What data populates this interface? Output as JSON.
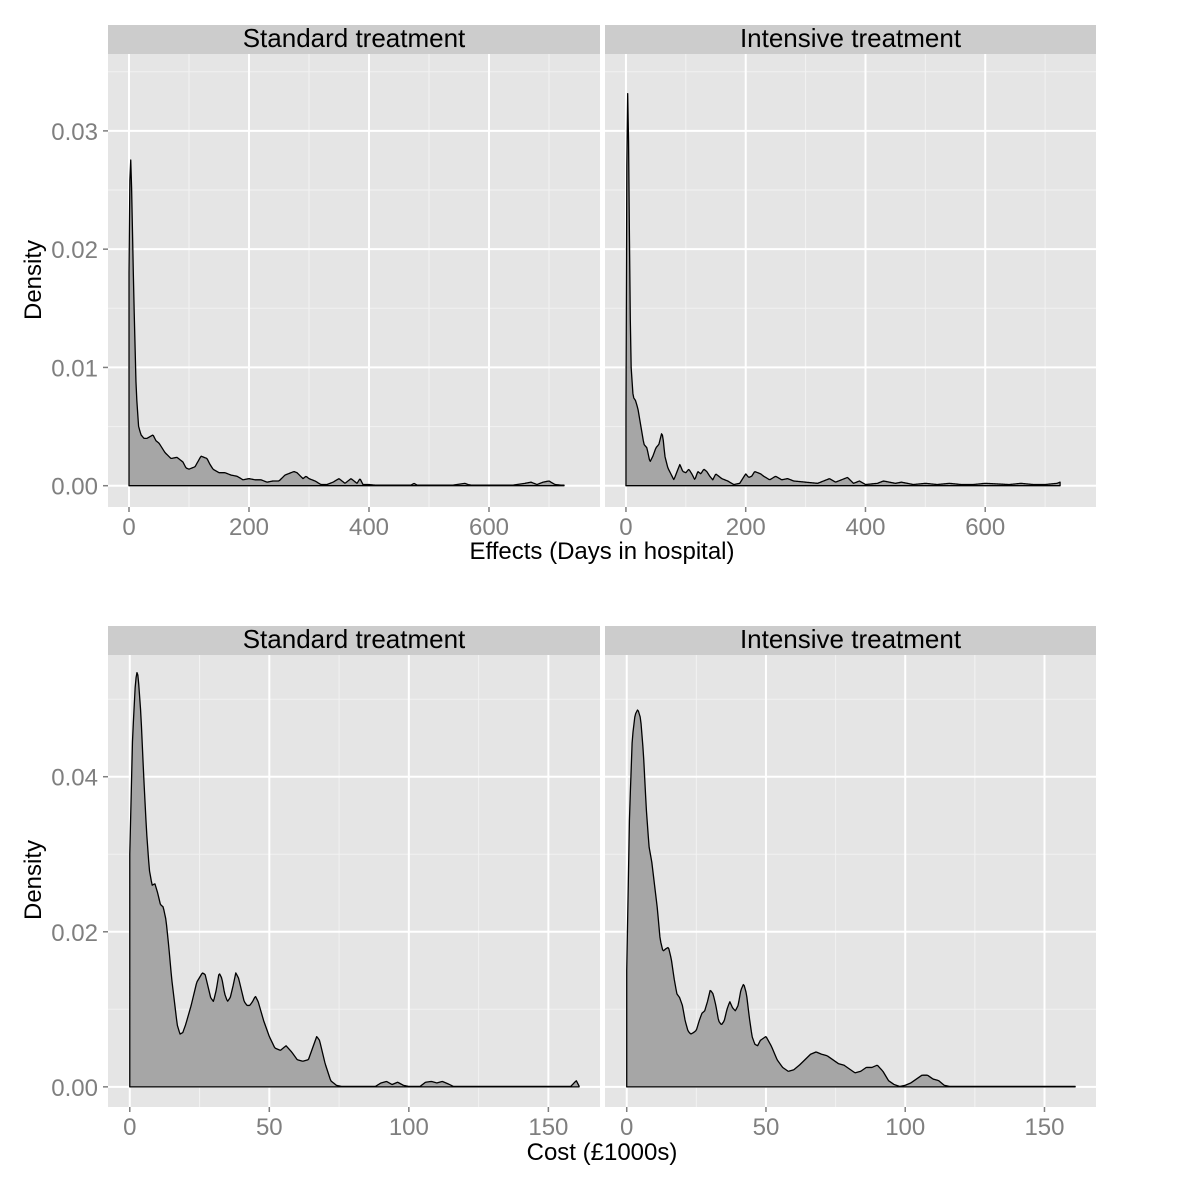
{
  "chart_data": [
    {
      "type": "area",
      "xlabel": "Effects (Days in hospital)",
      "ylabel": "Density",
      "xlim": [
        -35,
        785
      ],
      "ylim": [
        -0.0018,
        0.0365
      ],
      "xticks": [
        {
          "v": 0,
          "label": "0"
        },
        {
          "v": 200,
          "label": "200"
        },
        {
          "v": 400,
          "label": "400"
        },
        {
          "v": 600,
          "label": "600"
        }
      ],
      "yticks": [
        {
          "v": 0,
          "label": "0.00"
        },
        {
          "v": 0.01,
          "label": "0.01"
        },
        {
          "v": 0.02,
          "label": "0.02"
        },
        {
          "v": 0.03,
          "label": "0.03"
        }
      ],
      "panels": [
        {
          "strip": "Standard treatment",
          "x": [
            0,
            2,
            4,
            8,
            12,
            16,
            20,
            25,
            30,
            40,
            45,
            50,
            60,
            70,
            80,
            90,
            95,
            100,
            110,
            120,
            130,
            135,
            140,
            150,
            160,
            170,
            180,
            190,
            200,
            210,
            220,
            230,
            240,
            250,
            260,
            270,
            275,
            280,
            290,
            295,
            300,
            310,
            320,
            330,
            340,
            350,
            360,
            370,
            380,
            385,
            390,
            400,
            410,
            430,
            470,
            475,
            480,
            500,
            540,
            560,
            565,
            570,
            600,
            640,
            660,
            670,
            680,
            690,
            700,
            710,
            720,
            725
          ],
          "values": [
            0.018,
            0.0288,
            0.026,
            0.016,
            0.008,
            0.005,
            0.0043,
            0.004,
            0.004,
            0.0043,
            0.0038,
            0.0036,
            0.0028,
            0.0023,
            0.0024,
            0.002,
            0.0015,
            0.0014,
            0.0016,
            0.0025,
            0.0023,
            0.0018,
            0.0014,
            0.0011,
            0.0011,
            0.0009,
            0.0008,
            0.0005,
            0.0006,
            0.0005,
            0.0005,
            0.0003,
            0.0004,
            0.0004,
            0.0009,
            0.0011,
            0.0012,
            0.0011,
            0.0006,
            0.0008,
            0.0006,
            0.0004,
            0.0001,
            0.0001,
            0.0003,
            0.0006,
            0.0002,
            0.0006,
            0.0002,
            0.0006,
            0.0001,
            0.0001,
            5e-05,
            5e-05,
            5e-05,
            0.0002,
            5e-05,
            5e-05,
            5e-05,
            0.0002,
            0.0001,
            5e-05,
            5e-05,
            5e-05,
            0.0002,
            0.0003,
            0.0001,
            0.0003,
            0.0004,
            0.0001,
            5e-05,
            5e-05
          ]
        },
        {
          "strip": "Intensive treatment",
          "x": [
            0,
            2,
            4,
            6,
            8,
            12,
            16,
            20,
            25,
            30,
            35,
            40,
            45,
            50,
            55,
            60,
            62,
            65,
            70,
            75,
            80,
            90,
            95,
            100,
            105,
            110,
            115,
            120,
            125,
            130,
            135,
            140,
            145,
            150,
            160,
            170,
            180,
            190,
            200,
            205,
            210,
            215,
            220,
            225,
            230,
            240,
            250,
            260,
            270,
            280,
            300,
            320,
            340,
            350,
            360,
            370,
            380,
            390,
            400,
            420,
            430,
            440,
            450,
            460,
            480,
            500,
            520,
            540,
            560,
            580,
            600,
            640,
            660,
            680,
            700,
            720,
            725
          ],
          "values": [
            0.0062,
            0.0349,
            0.031,
            0.02,
            0.0105,
            0.0075,
            0.0072,
            0.0065,
            0.005,
            0.0035,
            0.0032,
            0.002,
            0.0025,
            0.0032,
            0.0035,
            0.0045,
            0.004,
            0.0025,
            0.0015,
            0.001,
            0.0005,
            0.0018,
            0.0012,
            0.0011,
            0.0014,
            0.001,
            0.0005,
            0.0012,
            0.001,
            0.0014,
            0.0012,
            0.0008,
            0.0005,
            0.001,
            0.0006,
            0.0004,
            0.0001,
            0.0002,
            0.001,
            0.0007,
            0.0008,
            0.0012,
            0.0011,
            0.001,
            0.0008,
            0.0005,
            0.0008,
            0.0005,
            0.0006,
            0.0004,
            0.0003,
            0.0002,
            0.0006,
            0.0003,
            0.0005,
            0.0007,
            0.0002,
            0.0004,
            0.0001,
            0.0002,
            0.0004,
            0.0003,
            0.0002,
            0.0003,
            0.0001,
            0.0002,
            0.0001,
            0.0002,
            0.0001,
            0.0001,
            0.0002,
            0.0001,
            0.0002,
            0.0001,
            0.0001,
            0.0002,
            0.0003
          ]
        }
      ]
    },
    {
      "type": "area",
      "xlabel": "Cost (£1000s)",
      "ylabel": "Density",
      "xlim": [
        -7.8,
        168.5
      ],
      "ylim": [
        -0.0026,
        0.0557
      ],
      "xticks": [
        {
          "v": 0,
          "label": "0"
        },
        {
          "v": 50,
          "label": "50"
        },
        {
          "v": 100,
          "label": "100"
        },
        {
          "v": 150,
          "label": "150"
        }
      ],
      "yticks": [
        {
          "v": 0,
          "label": "0.00"
        },
        {
          "v": 0.02,
          "label": "0.02"
        },
        {
          "v": 0.04,
          "label": "0.04"
        }
      ],
      "panels": [
        {
          "strip": "Standard treatment",
          "x": [
            0,
            1,
            2,
            2.5,
            3,
            4,
            5,
            6,
            7,
            8,
            9,
            10,
            11,
            12,
            13,
            14,
            15,
            16,
            17,
            18,
            19,
            20,
            22,
            24,
            26,
            27,
            28,
            29,
            30,
            31,
            32,
            33,
            34,
            35,
            36,
            37,
            38,
            39,
            40,
            41,
            42,
            43,
            44,
            45,
            46,
            48,
            50,
            52,
            54,
            56,
            58,
            60,
            62,
            64,
            66,
            67,
            68,
            70,
            72,
            74,
            76,
            80,
            85,
            88,
            90,
            92,
            94,
            96,
            98,
            100,
            104,
            106,
            108,
            110,
            112,
            114,
            116,
            120,
            130,
            140,
            150,
            158,
            160,
            161
          ],
          "values": [
            0.03,
            0.045,
            0.052,
            0.0535,
            0.053,
            0.048,
            0.04,
            0.033,
            0.028,
            0.026,
            0.0262,
            0.025,
            0.0235,
            0.0232,
            0.0215,
            0.018,
            0.014,
            0.011,
            0.008,
            0.0068,
            0.007,
            0.008,
            0.0105,
            0.0135,
            0.0147,
            0.0145,
            0.013,
            0.0115,
            0.011,
            0.0125,
            0.0147,
            0.014,
            0.012,
            0.011,
            0.0115,
            0.013,
            0.0147,
            0.014,
            0.0125,
            0.011,
            0.0105,
            0.0105,
            0.011,
            0.0117,
            0.011,
            0.0085,
            0.0065,
            0.005,
            0.0047,
            0.0053,
            0.0045,
            0.0035,
            0.0033,
            0.0035,
            0.0055,
            0.0065,
            0.006,
            0.003,
            0.0008,
            0.0002,
            5e-05,
            5e-05,
            5e-05,
            5e-05,
            0.0005,
            0.0007,
            0.0003,
            0.0006,
            0.0002,
            5e-05,
            5e-05,
            0.0006,
            0.0007,
            0.0005,
            0.0007,
            0.0004,
            5e-05,
            5e-05,
            5e-05,
            5e-05,
            5e-05,
            5e-05,
            0.0008,
            0.0001
          ]
        },
        {
          "strip": "Intensive treatment",
          "x": [
            0,
            1,
            2,
            3,
            4,
            5,
            6,
            7,
            8,
            9,
            10,
            11,
            12,
            13,
            14,
            15,
            16,
            17,
            18,
            19,
            20,
            21,
            22,
            23,
            24,
            25,
            26,
            27,
            28,
            29,
            30,
            31,
            32,
            33,
            34,
            35,
            36,
            37,
            38,
            39,
            40,
            41,
            42,
            43,
            44,
            45,
            46,
            47,
            48,
            50,
            52,
            54,
            56,
            58,
            60,
            62,
            64,
            66,
            68,
            70,
            72,
            74,
            76,
            78,
            80,
            82,
            84,
            86,
            88,
            90,
            92,
            94,
            96,
            98,
            100,
            102,
            104,
            106,
            108,
            110,
            112,
            114,
            116,
            120,
            130,
            140,
            150,
            161
          ],
          "values": [
            0.015,
            0.035,
            0.045,
            0.048,
            0.0487,
            0.0475,
            0.043,
            0.036,
            0.031,
            0.029,
            0.026,
            0.023,
            0.019,
            0.0175,
            0.0178,
            0.018,
            0.0165,
            0.014,
            0.012,
            0.0115,
            0.0105,
            0.0085,
            0.0072,
            0.0068,
            0.007,
            0.0073,
            0.0085,
            0.0095,
            0.0098,
            0.011,
            0.0125,
            0.012,
            0.0105,
            0.0085,
            0.008,
            0.0085,
            0.01,
            0.011,
            0.0102,
            0.0098,
            0.0105,
            0.0125,
            0.0133,
            0.012,
            0.009,
            0.0065,
            0.0055,
            0.0053,
            0.006,
            0.0065,
            0.0052,
            0.0035,
            0.0025,
            0.002,
            0.0022,
            0.0028,
            0.0035,
            0.0042,
            0.0045,
            0.0042,
            0.004,
            0.0035,
            0.003,
            0.0028,
            0.0023,
            0.0018,
            0.002,
            0.0025,
            0.0025,
            0.0028,
            0.002,
            0.0008,
            0.0003,
            5e-05,
            0.0002,
            0.0005,
            0.001,
            0.0015,
            0.0015,
            0.001,
            0.0008,
            0.0002,
            5e-05,
            5e-05,
            5e-05,
            5e-05,
            5e-05,
            5e-05
          ]
        }
      ]
    }
  ]
}
